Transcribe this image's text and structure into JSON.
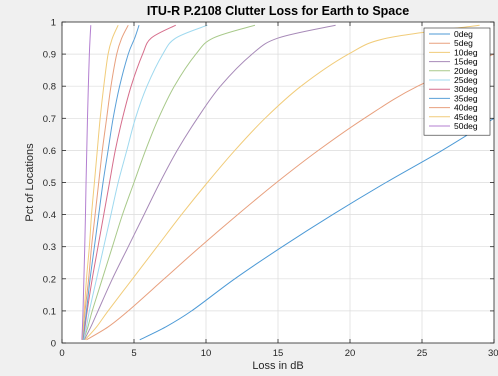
{
  "chart_data": {
    "type": "line",
    "title": "ITU-R P.2108 Clutter Loss for Earth to Space",
    "xlabel": "Loss in dB",
    "ylabel": "Pct of Locations",
    "xlim": [
      0,
      30
    ],
    "ylim": [
      0,
      1
    ],
    "xticks": [
      "0",
      "5",
      "10",
      "15",
      "20",
      "25",
      "30"
    ],
    "yticks": [
      "0",
      "0.1",
      "0.2",
      "0.3",
      "0.4",
      "0.5",
      "0.6",
      "0.7",
      "0.8",
      "0.9",
      "1"
    ],
    "grid": true,
    "legend_position": "top-right",
    "y_values": [
      0.01,
      0.05,
      0.1,
      0.2,
      0.3,
      0.4,
      0.5,
      0.6,
      0.7,
      0.8,
      0.9,
      0.95,
      0.99
    ],
    "series": [
      {
        "name": "0deg",
        "color": "#4d9ad6",
        "x": [
          5.4,
          7.2,
          9.0,
          12.0,
          15.3,
          18.8,
          22.5,
          26.4,
          30.0,
          null,
          null,
          null,
          null
        ]
      },
      {
        "name": "5deg",
        "color": "#e8a07e",
        "x": [
          1.7,
          3.2,
          4.6,
          7.1,
          9.6,
          12.2,
          14.9,
          17.8,
          21.0,
          24.7,
          30.0,
          null,
          null
        ]
      },
      {
        "name": "10deg",
        "color": "#f1cc7a",
        "x": [
          1.6,
          2.4,
          3.2,
          4.9,
          6.6,
          8.3,
          10.1,
          12.0,
          14.1,
          16.6,
          19.9,
          22.6,
          29.0
        ]
      },
      {
        "name": "15deg",
        "color": "#a78ab8",
        "x": [
          1.55,
          2.0,
          2.5,
          3.5,
          4.6,
          5.7,
          6.8,
          8.0,
          9.4,
          11.0,
          13.2,
          15.0,
          19.0
        ]
      },
      {
        "name": "20deg",
        "color": "#a8c98a",
        "x": [
          1.5,
          1.8,
          2.1,
          2.8,
          3.5,
          4.2,
          5.0,
          5.8,
          6.7,
          7.8,
          9.3,
          10.5,
          13.4
        ]
      },
      {
        "name": "25deg",
        "color": "#9fd9ef",
        "x": [
          1.5,
          1.7,
          1.9,
          2.4,
          2.9,
          3.4,
          3.9,
          4.5,
          5.1,
          5.9,
          7.0,
          7.9,
          10.1
        ]
      },
      {
        "name": "30deg",
        "color": "#d66e8c",
        "x": [
          1.45,
          1.6,
          1.75,
          2.1,
          2.5,
          2.9,
          3.3,
          3.7,
          4.2,
          4.8,
          5.6,
          6.2,
          7.9
        ]
      },
      {
        "name": "35deg",
        "color": "#5aa0d8",
        "x": [
          1.45,
          1.55,
          1.7,
          1.95,
          2.25,
          2.55,
          2.85,
          3.2,
          3.55,
          4.0,
          4.6,
          5.05,
          5.35
        ]
      },
      {
        "name": "40deg",
        "color": "#e8a07e",
        "x": [
          1.4,
          1.5,
          1.6,
          1.85,
          2.05,
          2.3,
          2.55,
          2.8,
          3.1,
          3.4,
          3.8,
          4.15,
          4.6
        ]
      },
      {
        "name": "45deg",
        "color": "#f1cc7a",
        "x": [
          1.4,
          1.48,
          1.55,
          1.7,
          1.9,
          2.05,
          2.25,
          2.45,
          2.65,
          2.9,
          3.2,
          3.5,
          3.9
        ]
      },
      {
        "name": "50deg",
        "color": "#b37fd0",
        "x": [
          1.38,
          1.42,
          1.46,
          1.52,
          1.58,
          1.63,
          1.67,
          1.72,
          1.77,
          1.83,
          1.9,
          1.95,
          2.0
        ]
      }
    ]
  }
}
